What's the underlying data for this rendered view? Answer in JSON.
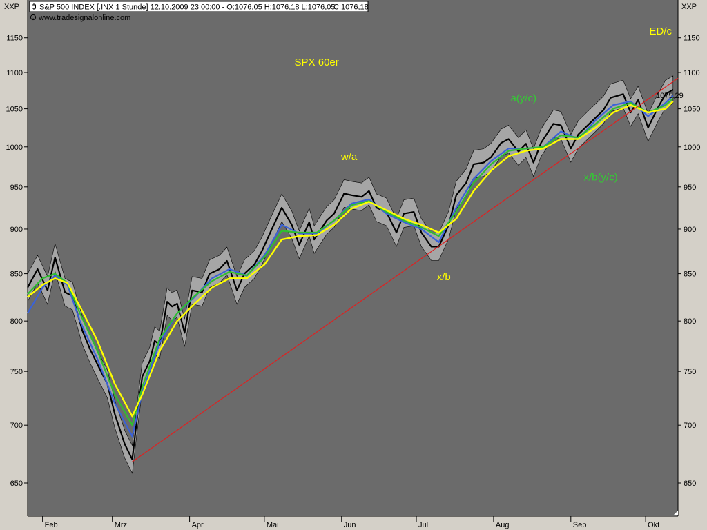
{
  "header": {
    "symbol_text": "S&P 500 INDEX [.INX  1 Stunde] 12.10.2009 23:00:00 - O:1076,05 H:1076,18 L:1076,05",
    "close_text": "C:1076,18",
    "source": "www.tradesignalonline.com",
    "axis_corner_left": "XXP",
    "axis_corner_right": "XXP",
    "last_value_label": "1075,29"
  },
  "colors": {
    "plot_bg": "#6b6b6b",
    "frame_bg": "#d4d0c8",
    "price": "#000000",
    "band": "#a6a6a6",
    "ma_fast": "#3a62d8",
    "ma_mid": "#2fbf2f",
    "ma_slow": "#ffff00",
    "trendline": "#e02020",
    "annot_yellow": "#ffff00",
    "annot_green": "#33cc33",
    "close_green": "#00cc00",
    "last_value_red": "#e02020"
  },
  "chart_data": {
    "type": "line",
    "title": "SPX 60er",
    "y_scale": "log",
    "ylim": [
      620,
      1170
    ],
    "y_ticks": [
      650,
      700,
      750,
      800,
      850,
      900,
      950,
      1000,
      1050,
      1100,
      1150
    ],
    "x_start": "2009-01-26",
    "x_end": "2009-10-14",
    "x_ticks": [
      {
        "date": "2009-02-01",
        "label": "Feb"
      },
      {
        "date": "2009-03-01",
        "label": "Mrz"
      },
      {
        "date": "2009-04-01",
        "label": "Apr"
      },
      {
        "date": "2009-05-01",
        "label": "Mai"
      },
      {
        "date": "2009-06-01",
        "label": "Jun"
      },
      {
        "date": "2009-07-01",
        "label": "Jul"
      },
      {
        "date": "2009-08-01",
        "label": "Aug"
      },
      {
        "date": "2009-09-01",
        "label": "Sep"
      },
      {
        "date": "2009-10-01",
        "label": "Okt"
      }
    ],
    "series": [
      {
        "key": "price",
        "values": [
          [
            "2009-01-26",
            835
          ],
          [
            "2009-01-30",
            855
          ],
          [
            "2009-02-03",
            832
          ],
          [
            "2009-02-06",
            868
          ],
          [
            "2009-02-10",
            830
          ],
          [
            "2009-02-13",
            826
          ],
          [
            "2009-02-17",
            790
          ],
          [
            "2009-02-20",
            772
          ],
          [
            "2009-02-24",
            752
          ],
          [
            "2009-02-27",
            738
          ],
          [
            "2009-03-02",
            710
          ],
          [
            "2009-03-06",
            683
          ],
          [
            "2009-03-09",
            670
          ],
          [
            "2009-03-11",
            708
          ],
          [
            "2009-03-13",
            745
          ],
          [
            "2009-03-16",
            760
          ],
          [
            "2009-03-18",
            780
          ],
          [
            "2009-03-20",
            776
          ],
          [
            "2009-03-23",
            820
          ],
          [
            "2009-03-25",
            815
          ],
          [
            "2009-03-27",
            818
          ],
          [
            "2009-03-30",
            788
          ],
          [
            "2009-04-02",
            832
          ],
          [
            "2009-04-06",
            830
          ],
          [
            "2009-04-09",
            850
          ],
          [
            "2009-04-13",
            855
          ],
          [
            "2009-04-16",
            864
          ],
          [
            "2009-04-20",
            832
          ],
          [
            "2009-04-23",
            850
          ],
          [
            "2009-04-27",
            860
          ],
          [
            "2009-04-30",
            875
          ],
          [
            "2009-05-04",
            900
          ],
          [
            "2009-05-08",
            925
          ],
          [
            "2009-05-12",
            905
          ],
          [
            "2009-05-15",
            882
          ],
          [
            "2009-05-19",
            908
          ],
          [
            "2009-05-21",
            888
          ],
          [
            "2009-05-26",
            910
          ],
          [
            "2009-05-29",
            918
          ],
          [
            "2009-06-02",
            942
          ],
          [
            "2009-06-05",
            940
          ],
          [
            "2009-06-09",
            938
          ],
          [
            "2009-06-12",
            945
          ],
          [
            "2009-06-15",
            925
          ],
          [
            "2009-06-19",
            920
          ],
          [
            "2009-06-23",
            896
          ],
          [
            "2009-06-26",
            918
          ],
          [
            "2009-06-30",
            920
          ],
          [
            "2009-07-03",
            896
          ],
          [
            "2009-07-07",
            880
          ],
          [
            "2009-07-10",
            880
          ],
          [
            "2009-07-14",
            905
          ],
          [
            "2009-07-17",
            940
          ],
          [
            "2009-07-21",
            955
          ],
          [
            "2009-07-24",
            978
          ],
          [
            "2009-07-28",
            980
          ],
          [
            "2009-07-31",
            987
          ],
          [
            "2009-08-04",
            1005
          ],
          [
            "2009-08-07",
            1010
          ],
          [
            "2009-08-11",
            994
          ],
          [
            "2009-08-14",
            1004
          ],
          [
            "2009-08-17",
            980
          ],
          [
            "2009-08-20",
            1005
          ],
          [
            "2009-08-25",
            1030
          ],
          [
            "2009-08-28",
            1028
          ],
          [
            "2009-09-01",
            998
          ],
          [
            "2009-09-04",
            1016
          ],
          [
            "2009-09-09",
            1032
          ],
          [
            "2009-09-14",
            1048
          ],
          [
            "2009-09-17",
            1065
          ],
          [
            "2009-09-22",
            1070
          ],
          [
            "2009-09-25",
            1045
          ],
          [
            "2009-09-28",
            1062
          ],
          [
            "2009-10-02",
            1025
          ],
          [
            "2009-10-06",
            1052
          ],
          [
            "2009-10-09",
            1070
          ],
          [
            "2009-10-12",
            1076
          ]
        ]
      },
      {
        "key": "ma_fast",
        "values": [
          [
            "2009-01-26",
            808
          ],
          [
            "2009-02-01",
            835
          ],
          [
            "2009-02-06",
            848
          ],
          [
            "2009-02-11",
            838
          ],
          [
            "2009-02-16",
            800
          ],
          [
            "2009-02-23",
            762
          ],
          [
            "2009-03-02",
            720
          ],
          [
            "2009-03-09",
            690
          ],
          [
            "2009-03-13",
            730
          ],
          [
            "2009-03-20",
            778
          ],
          [
            "2009-03-27",
            808
          ],
          [
            "2009-04-03",
            825
          ],
          [
            "2009-04-10",
            845
          ],
          [
            "2009-04-17",
            855
          ],
          [
            "2009-04-24",
            848
          ],
          [
            "2009-05-01",
            870
          ],
          [
            "2009-05-08",
            905
          ],
          [
            "2009-05-15",
            895
          ],
          [
            "2009-05-22",
            895
          ],
          [
            "2009-05-29",
            910
          ],
          [
            "2009-06-05",
            930
          ],
          [
            "2009-06-12",
            935
          ],
          [
            "2009-06-19",
            918
          ],
          [
            "2009-06-26",
            908
          ],
          [
            "2009-07-03",
            900
          ],
          [
            "2009-07-10",
            885
          ],
          [
            "2009-07-17",
            925
          ],
          [
            "2009-07-24",
            960
          ],
          [
            "2009-07-31",
            982
          ],
          [
            "2009-08-07",
            998
          ],
          [
            "2009-08-14",
            998
          ],
          [
            "2009-08-21",
            1000
          ],
          [
            "2009-08-28",
            1020
          ],
          [
            "2009-09-04",
            1010
          ],
          [
            "2009-09-11",
            1035
          ],
          [
            "2009-09-18",
            1055
          ],
          [
            "2009-09-25",
            1060
          ],
          [
            "2009-10-02",
            1040
          ],
          [
            "2009-10-09",
            1058
          ],
          [
            "2009-10-12",
            1068
          ]
        ]
      },
      {
        "key": "ma_mid",
        "values": [
          [
            "2009-01-26",
            828
          ],
          [
            "2009-02-01",
            845
          ],
          [
            "2009-02-06",
            850
          ],
          [
            "2009-02-11",
            840
          ],
          [
            "2009-02-16",
            808
          ],
          [
            "2009-02-23",
            770
          ],
          [
            "2009-03-02",
            728
          ],
          [
            "2009-03-09",
            700
          ],
          [
            "2009-03-13",
            735
          ],
          [
            "2009-03-20",
            782
          ],
          [
            "2009-03-27",
            808
          ],
          [
            "2009-04-03",
            826
          ],
          [
            "2009-04-10",
            842
          ],
          [
            "2009-04-17",
            852
          ],
          [
            "2009-04-24",
            848
          ],
          [
            "2009-05-01",
            868
          ],
          [
            "2009-05-08",
            898
          ],
          [
            "2009-05-15",
            896
          ],
          [
            "2009-05-22",
            896
          ],
          [
            "2009-05-29",
            910
          ],
          [
            "2009-06-05",
            928
          ],
          [
            "2009-06-12",
            933
          ],
          [
            "2009-06-19",
            920
          ],
          [
            "2009-06-26",
            910
          ],
          [
            "2009-07-03",
            902
          ],
          [
            "2009-07-10",
            892
          ],
          [
            "2009-07-17",
            920
          ],
          [
            "2009-07-24",
            955
          ],
          [
            "2009-07-31",
            978
          ],
          [
            "2009-08-07",
            995
          ],
          [
            "2009-08-14",
            998
          ],
          [
            "2009-08-21",
            1000
          ],
          [
            "2009-08-28",
            1015
          ],
          [
            "2009-09-04",
            1012
          ],
          [
            "2009-09-11",
            1030
          ],
          [
            "2009-09-18",
            1050
          ],
          [
            "2009-09-25",
            1058
          ],
          [
            "2009-10-02",
            1045
          ],
          [
            "2009-10-09",
            1055
          ],
          [
            "2009-10-12",
            1064
          ]
        ]
      },
      {
        "key": "ma_slow",
        "values": [
          [
            "2009-01-26",
            825
          ],
          [
            "2009-02-01",
            838
          ],
          [
            "2009-02-06",
            845
          ],
          [
            "2009-02-11",
            840
          ],
          [
            "2009-02-16",
            815
          ],
          [
            "2009-02-23",
            780
          ],
          [
            "2009-03-02",
            738
          ],
          [
            "2009-03-09",
            708
          ],
          [
            "2009-03-13",
            728
          ],
          [
            "2009-03-20",
            770
          ],
          [
            "2009-03-27",
            800
          ],
          [
            "2009-04-03",
            818
          ],
          [
            "2009-04-10",
            835
          ],
          [
            "2009-04-17",
            845
          ],
          [
            "2009-04-24",
            845
          ],
          [
            "2009-05-01",
            860
          ],
          [
            "2009-05-08",
            888
          ],
          [
            "2009-05-15",
            892
          ],
          [
            "2009-05-22",
            893
          ],
          [
            "2009-05-29",
            905
          ],
          [
            "2009-06-05",
            924
          ],
          [
            "2009-06-12",
            932
          ],
          [
            "2009-06-19",
            922
          ],
          [
            "2009-06-26",
            912
          ],
          [
            "2009-07-03",
            905
          ],
          [
            "2009-07-10",
            896
          ],
          [
            "2009-07-17",
            912
          ],
          [
            "2009-07-24",
            945
          ],
          [
            "2009-07-31",
            970
          ],
          [
            "2009-08-07",
            988
          ],
          [
            "2009-08-14",
            995
          ],
          [
            "2009-08-21",
            998
          ],
          [
            "2009-08-28",
            1010
          ],
          [
            "2009-09-04",
            1010
          ],
          [
            "2009-09-11",
            1025
          ],
          [
            "2009-09-18",
            1045
          ],
          [
            "2009-09-25",
            1055
          ],
          [
            "2009-10-02",
            1045
          ],
          [
            "2009-10-09",
            1050
          ],
          [
            "2009-10-12",
            1060
          ]
        ]
      }
    ],
    "trendline": {
      "from": [
        "2009-03-09",
        668
      ],
      "to": [
        "2009-10-14",
        1092
      ]
    },
    "annotations": [
      {
        "text": "SPX 60er",
        "x": "2009-05-22",
        "y": 1110,
        "color_key": "annot_yellow"
      },
      {
        "text": "w/a",
        "x": "2009-06-04",
        "y": 983,
        "color_key": "annot_yellow"
      },
      {
        "text": "x/b",
        "x": "2009-07-12",
        "y": 843,
        "color_key": "annot_yellow"
      },
      {
        "text": "ED/c",
        "x": "2009-10-07",
        "y": 1155,
        "color_key": "annot_yellow"
      },
      {
        "text": "a(y/c)",
        "x": "2009-08-13",
        "y": 1060,
        "color_key": "annot_green"
      },
      {
        "text": "x/b(y/c)",
        "x": "2009-09-13",
        "y": 958,
        "color_key": "annot_green"
      }
    ]
  }
}
